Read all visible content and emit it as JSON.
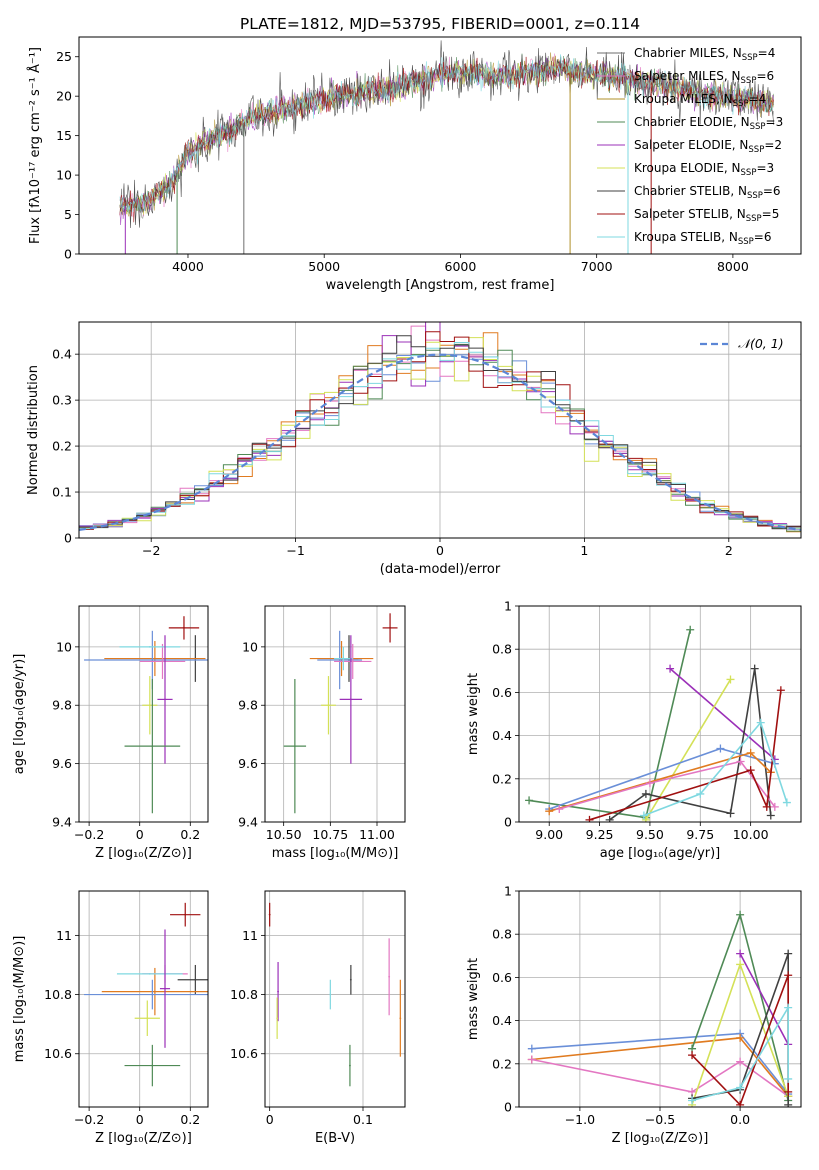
{
  "figure_title": "PLATE=1812, MJD=53795, FIBERID=0001, z=0.114",
  "colors": [
    "#6e6e6e",
    "#e377c2",
    "#b0902a",
    "#4f8a56",
    "#9b30b8",
    "#d4e157",
    "#404040",
    "#a01010",
    "#7fd8e0"
  ],
  "chart_data": [
    {
      "id": "spectrum",
      "type": "line",
      "title": "PLATE=1812, MJD=53795, FIBERID=0001, z=0.114",
      "xlabel": "wavelength [Angstrom, rest frame]",
      "ylabel": "Flux [fλ10⁻¹⁷ erg cm⁻² s⁻¹ Å⁻¹]",
      "xlim": [
        3200,
        8500
      ],
      "ylim": [
        0,
        27.5
      ],
      "xticks": [
        4000,
        5000,
        6000,
        7000,
        8000
      ],
      "yticks": [
        0,
        5,
        10,
        15,
        20,
        25
      ],
      "grid": false,
      "legend_position": "upper-right",
      "continuum": {
        "x": [
          3500,
          3700,
          3900,
          4000,
          4100,
          4300,
          4500,
          4700,
          4900,
          5100,
          5300,
          5500,
          5700,
          5900,
          6100,
          6300,
          6500,
          6700,
          6900,
          7100,
          7300,
          7500,
          7700,
          7900,
          8100,
          8300
        ],
        "y": [
          6.0,
          6.5,
          9.5,
          13.0,
          14.0,
          15.5,
          17.5,
          18.5,
          19.0,
          20.0,
          20.5,
          21.0,
          22.0,
          23.0,
          23.0,
          22.5,
          23.0,
          23.5,
          23.0,
          22.5,
          22.0,
          21.5,
          20.5,
          20.0,
          19.5,
          19.0
        ]
      },
      "legend": [
        "Chabrier MILES, N_SSP=4",
        "Salpeter MILES, N_SSP=6",
        "Kroupa MILES, N_SSP=4",
        "Chabrier ELODIE, N_SSP=3",
        "Salpeter ELODIE, N_SSP=2",
        "Kroupa ELODIE, N_SSP=3",
        "Chabrier STELIB, N_SSP=6",
        "Salpeter STELIB, N_SSP=5",
        "Kroupa STELIB, N_SSP=6"
      ]
    },
    {
      "id": "residuals",
      "type": "histogram",
      "xlabel": "(data-model)/error",
      "ylabel": "Normed distribution",
      "xlim": [
        -2.5,
        2.5
      ],
      "ylim": [
        0,
        0.47
      ],
      "xticks": [
        -2,
        -1,
        0,
        1,
        2
      ],
      "yticks": [
        0.0,
        0.1,
        0.2,
        0.3,
        0.4
      ],
      "grid": true,
      "legend_position": "upper-right",
      "legend": [
        "𝒩(0, 1)"
      ],
      "bin_width": 0.1,
      "bin_start": -2.5
    },
    {
      "id": "age-vs-Z",
      "type": "scatter",
      "xlabel": "Z [log₁₀(Z/Z⊙)]",
      "ylabel": "age  [log₁₀(age/yr)]",
      "xlim": [
        -0.24,
        0.27
      ],
      "ylim": [
        9.4,
        10.14
      ],
      "xticks": [
        -0.2,
        0.0,
        0.2
      ],
      "yticks": [
        9.4,
        9.6,
        9.8,
        10.0
      ],
      "grid": true,
      "points": [
        {
          "x": 0.175,
          "y": 10.065,
          "xerr": 0.06,
          "yerr": 0.04,
          "color": "#a01010"
        },
        {
          "x": 0.22,
          "y": 9.96,
          "xerr": 0.0,
          "yerr": 0.08,
          "color": "#404040"
        },
        {
          "x": 0.06,
          "y": 9.96,
          "xerr": 0.2,
          "yerr": 0.06,
          "color": "#e07b20"
        },
        {
          "x": 0.05,
          "y": 9.955,
          "xerr": 0.27,
          "yerr": 0.1,
          "color": "#6a8fd8"
        },
        {
          "x": 0.09,
          "y": 9.95,
          "xerr": 0.09,
          "yerr": 0.06,
          "color": "#e377c2"
        },
        {
          "x": 0.04,
          "y": 10.0,
          "xerr": 0.12,
          "yerr": 0.0,
          "color": "#7fd8e0"
        },
        {
          "x": 0.1,
          "y": 9.82,
          "xerr": 0.03,
          "yerr": 0.22,
          "color": "#9b30b8"
        },
        {
          "x": 0.04,
          "y": 9.8,
          "xerr": 0.03,
          "yerr": 0.1,
          "color": "#d4e157"
        },
        {
          "x": 0.05,
          "y": 9.66,
          "xerr": 0.11,
          "yerr": 0.23,
          "color": "#4f8a56"
        }
      ]
    },
    {
      "id": "age-vs-mass",
      "type": "scatter",
      "xlabel": "mass [log₁₀(M/M⊙)]",
      "ylabel": "",
      "xlim": [
        10.4,
        11.15
      ],
      "ylim": [
        9.4,
        10.14
      ],
      "xticks": [
        10.5,
        10.75,
        11.0
      ],
      "xticklabels": [
        "10.50",
        "10.75",
        "11.00"
      ],
      "yticks": [
        9.4,
        9.6,
        9.8,
        10.0
      ],
      "grid": true,
      "points": [
        {
          "x": 11.07,
          "y": 10.065,
          "xerr": 0.04,
          "yerr": 0.05,
          "color": "#a01010"
        },
        {
          "x": 10.85,
          "y": 9.96,
          "xerr": 0.05,
          "yerr": 0.08,
          "color": "#404040"
        },
        {
          "x": 10.81,
          "y": 9.96,
          "xerr": 0.17,
          "yerr": 0.06,
          "color": "#e07b20"
        },
        {
          "x": 10.8,
          "y": 9.955,
          "xerr": 0.12,
          "yerr": 0.1,
          "color": "#6a8fd8"
        },
        {
          "x": 10.87,
          "y": 9.95,
          "xerr": 0.1,
          "yerr": 0.06,
          "color": "#e377c2"
        },
        {
          "x": 10.82,
          "y": 9.96,
          "xerr": 0.05,
          "yerr": 0.04,
          "color": "#7fd8e0"
        },
        {
          "x": 10.86,
          "y": 9.82,
          "xerr": 0.06,
          "yerr": 0.22,
          "color": "#9b30b8"
        },
        {
          "x": 10.74,
          "y": 9.8,
          "xerr": 0.04,
          "yerr": 0.1,
          "color": "#d4e157"
        },
        {
          "x": 10.56,
          "y": 9.66,
          "xerr": 0.06,
          "yerr": 0.23,
          "color": "#4f8a56"
        }
      ]
    },
    {
      "id": "mass-weight-vs-age",
      "type": "line",
      "xlabel": "age  [log₁₀(age/yr)]",
      "ylabel": "mass weight",
      "xlim": [
        8.85,
        10.25
      ],
      "ylim": [
        0,
        1
      ],
      "xticks": [
        9.0,
        9.25,
        9.5,
        9.75,
        10.0
      ],
      "xticklabels": [
        "9.00",
        "9.25",
        "9.50",
        "9.75",
        "10.00"
      ],
      "yticks": [
        0.0,
        0.2,
        0.4,
        0.6,
        0.8,
        1.0
      ],
      "grid": true,
      "series": [
        {
          "color": "#4f8a56",
          "x": [
            8.9,
            9.48,
            9.7
          ],
          "y": [
            0.1,
            0.02,
            0.89
          ]
        },
        {
          "color": "#9b30b8",
          "x": [
            9.6,
            10.12
          ],
          "y": [
            0.71,
            0.29
          ]
        },
        {
          "color": "#d4e157",
          "x": [
            9.48,
            9.9
          ],
          "y": [
            0.01,
            0.66
          ]
        },
        {
          "color": "#404040",
          "x": [
            9.3,
            9.48,
            9.9,
            10.02,
            10.1
          ],
          "y": [
            0.01,
            0.13,
            0.04,
            0.71,
            0.03
          ]
        },
        {
          "color": "#6a8fd8",
          "x": [
            9.0,
            9.85,
            10.12
          ],
          "y": [
            0.06,
            0.34,
            0.27
          ]
        },
        {
          "color": "#e07b20",
          "x": [
            9.0,
            10.0,
            10.1
          ],
          "y": [
            0.05,
            0.32,
            0.23
          ]
        },
        {
          "color": "#e377c2",
          "x": [
            9.05,
            9.5,
            9.95,
            10.12
          ],
          "y": [
            0.06,
            0.18,
            0.28,
            0.07
          ]
        },
        {
          "color": "#a01010",
          "x": [
            9.2,
            10.0,
            10.08,
            10.15
          ],
          "y": [
            0.01,
            0.24,
            0.07,
            0.61
          ]
        },
        {
          "color": "#7fd8e0",
          "x": [
            9.47,
            9.75,
            10.05,
            10.18
          ],
          "y": [
            0.03,
            0.13,
            0.46,
            0.09
          ]
        }
      ]
    },
    {
      "id": "mass-vs-Z",
      "type": "scatter",
      "xlabel": "Z [log₁₀(Z/Z⊙)]",
      "ylabel": "mass [log₁₀(M/M⊙)]",
      "xlim": [
        -0.24,
        0.27
      ],
      "ylim": [
        10.42,
        11.15
      ],
      "xticks": [
        -0.2,
        0.0,
        0.2
      ],
      "yticks": [
        10.6,
        10.8,
        11.0
      ],
      "grid": true,
      "points": [
        {
          "x": 0.18,
          "y": 11.07,
          "xerr": 0.06,
          "yerr": 0.04,
          "color": "#a01010"
        },
        {
          "x": 0.22,
          "y": 10.85,
          "xerr": 0.07,
          "yerr": 0.05,
          "color": "#404040"
        },
        {
          "x": 0.06,
          "y": 10.81,
          "xerr": 0.21,
          "yerr": 0.08,
          "color": "#e07b20"
        },
        {
          "x": 0.05,
          "y": 10.8,
          "xerr": 0.27,
          "yerr": 0.05,
          "color": "#6a8fd8"
        },
        {
          "x": 0.1,
          "y": 10.87,
          "xerr": 0.09,
          "yerr": 0.03,
          "color": "#e377c2"
        },
        {
          "x": 0.04,
          "y": 10.87,
          "xerr": 0.13,
          "yerr": 0.0,
          "color": "#7fd8e0"
        },
        {
          "x": 0.1,
          "y": 10.82,
          "xerr": 0.02,
          "yerr": 0.2,
          "color": "#9b30b8"
        },
        {
          "x": 0.03,
          "y": 10.72,
          "xerr": 0.05,
          "yerr": 0.06,
          "color": "#d4e157"
        },
        {
          "x": 0.05,
          "y": 10.56,
          "xerr": 0.11,
          "yerr": 0.07,
          "color": "#4f8a56"
        }
      ]
    },
    {
      "id": "ebv",
      "type": "errorbar",
      "xlabel": "E(B-V)",
      "ylabel": "",
      "xlim": [
        -0.005,
        0.145
      ],
      "ylim": [
        10.42,
        11.15
      ],
      "xticks": [
        0.0,
        0.1
      ],
      "yticks": [
        10.6,
        10.8,
        11.0
      ],
      "grid": true,
      "points": [
        {
          "x": 0.0,
          "y": 11.07,
          "yerr": 0.04,
          "color": "#a01010"
        },
        {
          "x": 0.009,
          "y": 10.81,
          "yerr": 0.1,
          "color": "#9b30b8"
        },
        {
          "x": 0.008,
          "y": 10.72,
          "yerr": 0.07,
          "color": "#d4e157"
        },
        {
          "x": 0.065,
          "y": 10.8,
          "yerr": 0.05,
          "color": "#7fd8e0"
        },
        {
          "x": 0.087,
          "y": 10.85,
          "yerr": 0.05,
          "color": "#404040"
        },
        {
          "x": 0.086,
          "y": 10.56,
          "yerr": 0.07,
          "color": "#4f8a56"
        },
        {
          "x": 0.128,
          "y": 10.86,
          "yerr": 0.13,
          "color": "#e377c2"
        },
        {
          "x": 0.14,
          "y": 10.72,
          "yerr": 0.13,
          "color": "#e07b20"
        }
      ]
    },
    {
      "id": "mass-weight-vs-Z",
      "type": "line",
      "xlabel": "Z [log₁₀(Z/Z⊙)]",
      "ylabel": "mass weight",
      "xlim": [
        -1.38,
        0.38
      ],
      "ylim": [
        0,
        1
      ],
      "xticks": [
        -1.0,
        -0.5,
        0.0
      ],
      "xticklabels": [
        "−1.0",
        "−0.5",
        "0.0"
      ],
      "yticks": [
        0.0,
        0.2,
        0.4,
        0.6,
        0.8,
        1.0
      ],
      "grid": true,
      "series": [
        {
          "color": "#6a8fd8",
          "x": [
            -1.3,
            0.0,
            0.3
          ],
          "y": [
            0.27,
            0.34,
            0.06
          ]
        },
        {
          "color": "#e07b20",
          "x": [
            -1.3,
            0.0,
            0.3
          ],
          "y": [
            0.22,
            0.32,
            0.05
          ]
        },
        {
          "color": "#e377c2",
          "x": [
            -1.3,
            -0.3,
            0.0,
            0.3
          ],
          "y": [
            0.22,
            0.07,
            0.21,
            0.05
          ]
        },
        {
          "color": "#4f8a56",
          "x": [
            -0.3,
            0.0,
            0.3
          ],
          "y": [
            0.27,
            0.89,
            0.03
          ]
        },
        {
          "color": "#9b30b8",
          "x": [
            0.0,
            0.3
          ],
          "y": [
            0.71,
            0.29
          ]
        },
        {
          "color": "#d4e157",
          "x": [
            -0.3,
            0.0,
            0.3
          ],
          "y": [
            0.01,
            0.66,
            0.05
          ]
        },
        {
          "color": "#404040",
          "x": [
            -0.3,
            0.0,
            0.3,
            0.3
          ],
          "y": [
            0.04,
            0.08,
            0.71,
            0.01
          ]
        },
        {
          "color": "#a01010",
          "x": [
            -0.3,
            0.0,
            0.3,
            0.3
          ],
          "y": [
            0.24,
            0.01,
            0.61,
            0.07
          ]
        },
        {
          "color": "#7fd8e0",
          "x": [
            -0.3,
            0.0,
            0.3,
            0.3
          ],
          "y": [
            0.03,
            0.09,
            0.46,
            0.13
          ]
        }
      ]
    }
  ]
}
